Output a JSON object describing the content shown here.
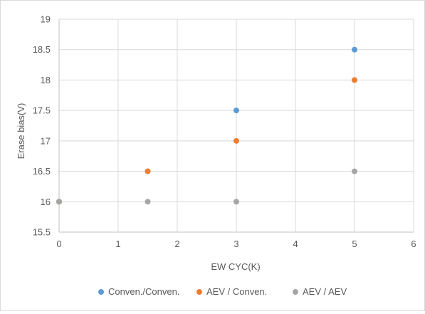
{
  "chart_data": {
    "type": "scatter",
    "xlabel": "EW CYC(K)",
    "ylabel": "Erase bias(V)",
    "xlim": [
      0,
      6
    ],
    "ylim": [
      15.5,
      19
    ],
    "x_ticks": [
      "0",
      "1",
      "2",
      "3",
      "4",
      "5",
      "6"
    ],
    "y_ticks": [
      "15.5",
      "16",
      "16.5",
      "17",
      "17.5",
      "18",
      "18.5",
      "19"
    ],
    "grid": true,
    "legend_position": "bottom",
    "series": [
      {
        "name": "Conven./Conven.",
        "color": "#5b9bd5",
        "points": [
          [
            0,
            16
          ],
          [
            1.5,
            16.5
          ],
          [
            3,
            17.5
          ],
          [
            5,
            18.5
          ]
        ]
      },
      {
        "name": "AEV / Conven.",
        "color": "#ed7d31",
        "points": [
          [
            0,
            16
          ],
          [
            1.5,
            16.5
          ],
          [
            3,
            17
          ],
          [
            5,
            18
          ]
        ]
      },
      {
        "name": "AEV / AEV",
        "color": "#a5a5a5",
        "points": [
          [
            0,
            16
          ],
          [
            1.5,
            16
          ],
          [
            3,
            16
          ],
          [
            5,
            16.5
          ]
        ]
      }
    ]
  }
}
